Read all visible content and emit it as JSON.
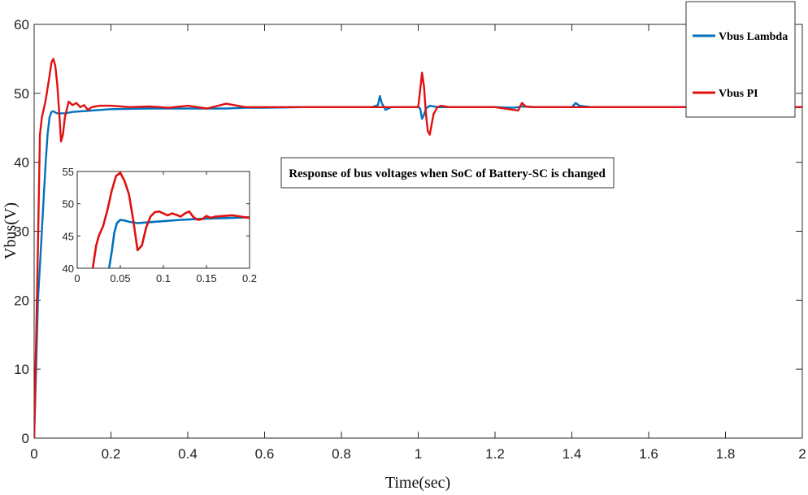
{
  "chart_data": [
    {
      "type": "line",
      "title": "",
      "xlabel": "Time(sec)",
      "ylabel": "Vbus(V)",
      "xlim": [
        0,
        2
      ],
      "ylim": [
        0,
        60
      ],
      "xticks": [
        "0",
        "0.2",
        "0.4",
        "0.6",
        "0.8",
        "1",
        "1.2",
        "1.4",
        "1.6",
        "1.8",
        "2"
      ],
      "yticks": [
        "0",
        "10",
        "20",
        "30",
        "40",
        "50",
        "60"
      ],
      "grid": false,
      "legend_position": "top-right",
      "annotation": "Response of bus voltages when SoC of Battery-SC is changed",
      "series": [
        {
          "name": "Vbus Lambda",
          "color": "#0072BD",
          "x": [
            0,
            0.005,
            0.01,
            0.015,
            0.02,
            0.025,
            0.03,
            0.035,
            0.04,
            0.045,
            0.05,
            0.06,
            0.08,
            0.1,
            0.15,
            0.2,
            0.3,
            0.4,
            0.5,
            0.55,
            0.6,
            0.7,
            0.8,
            0.88,
            0.895,
            0.9,
            0.905,
            0.915,
            0.93,
            1.0,
            1.005,
            1.01,
            1.015,
            1.02,
            1.03,
            1.05,
            1.2,
            1.25,
            1.27,
            1.3,
            1.4,
            1.41,
            1.42,
            1.45,
            2.0
          ],
          "y": [
            0,
            10,
            20,
            25,
            30,
            35,
            40,
            44,
            46.5,
            47.3,
            47.4,
            47.1,
            47.1,
            47.3,
            47.5,
            47.7,
            47.8,
            47.8,
            47.8,
            47.9,
            47.9,
            48.0,
            48.0,
            48.0,
            48.3,
            49.6,
            48.6,
            47.6,
            48.0,
            48.0,
            47.8,
            46.3,
            46.9,
            47.8,
            48.2,
            48.0,
            48.0,
            47.9,
            48.1,
            48.0,
            48.0,
            48.6,
            48.2,
            48.0,
            48.0
          ]
        },
        {
          "name": "Vbus PI",
          "color": "#E01010",
          "x": [
            0,
            0.005,
            0.01,
            0.015,
            0.02,
            0.03,
            0.04,
            0.045,
            0.05,
            0.055,
            0.06,
            0.065,
            0.07,
            0.075,
            0.08,
            0.09,
            0.1,
            0.11,
            0.12,
            0.13,
            0.14,
            0.15,
            0.17,
            0.2,
            0.25,
            0.3,
            0.35,
            0.4,
            0.45,
            0.5,
            0.55,
            0.6,
            0.65,
            0.7,
            0.8,
            0.9,
            1.0,
            1.005,
            1.01,
            1.015,
            1.02,
            1.025,
            1.03,
            1.035,
            1.04,
            1.05,
            1.06,
            1.08,
            1.1,
            1.2,
            1.26,
            1.27,
            1.28,
            1.3,
            1.4,
            1.5,
            2.0
          ],
          "y": [
            0,
            14,
            28,
            44,
            46.5,
            49,
            52.5,
            54.5,
            55.0,
            54.0,
            51.5,
            47.5,
            43.0,
            44.0,
            46.5,
            48.8,
            48.3,
            48.6,
            48.0,
            48.3,
            47.6,
            48.0,
            48.2,
            48.2,
            48.0,
            48.1,
            47.9,
            48.2,
            47.8,
            48.5,
            48.0,
            48.0,
            48.0,
            48.0,
            48.0,
            48.0,
            48.0,
            50.5,
            53.0,
            51.0,
            47.0,
            44.5,
            44.0,
            45.5,
            47.0,
            48.0,
            48.2,
            48.0,
            48.0,
            48.0,
            47.5,
            48.6,
            48.1,
            48.0,
            48.0,
            48.0,
            48.0
          ]
        }
      ]
    },
    {
      "type": "line",
      "title": "",
      "xlim": [
        0,
        0.2
      ],
      "ylim": [
        40,
        55
      ],
      "xticks": [
        "0",
        "0.05",
        "0.1",
        "0.15",
        "0.2"
      ],
      "yticks": [
        "40",
        "45",
        "50",
        "55"
      ],
      "grid": false,
      "series": [
        {
          "color": "#0072BD",
          "x": [
            0.037,
            0.04,
            0.043,
            0.046,
            0.05,
            0.055,
            0.06,
            0.07,
            0.08,
            0.1,
            0.12,
            0.15,
            0.18,
            0.2
          ],
          "y": [
            40,
            42.5,
            45.5,
            47.0,
            47.5,
            47.4,
            47.2,
            47.0,
            47.1,
            47.3,
            47.5,
            47.7,
            47.8,
            47.9
          ]
        },
        {
          "color": "#E01010",
          "x": [
            0.018,
            0.022,
            0.025,
            0.03,
            0.035,
            0.04,
            0.045,
            0.05,
            0.055,
            0.06,
            0.065,
            0.07,
            0.075,
            0.08,
            0.085,
            0.09,
            0.095,
            0.1,
            0.105,
            0.11,
            0.115,
            0.12,
            0.125,
            0.13,
            0.135,
            0.14,
            0.145,
            0.15,
            0.155,
            0.16,
            0.17,
            0.18,
            0.19,
            0.2
          ],
          "y": [
            40,
            43.5,
            45.0,
            46.5,
            49.0,
            52.0,
            54.3,
            54.8,
            53.5,
            51.5,
            47.5,
            42.8,
            43.5,
            46.3,
            48.0,
            48.7,
            48.8,
            48.5,
            48.2,
            48.5,
            48.3,
            48.0,
            48.5,
            48.8,
            47.9,
            47.5,
            47.6,
            48.1,
            47.8,
            48.0,
            48.1,
            48.2,
            48.0,
            47.8
          ]
        }
      ]
    }
  ]
}
